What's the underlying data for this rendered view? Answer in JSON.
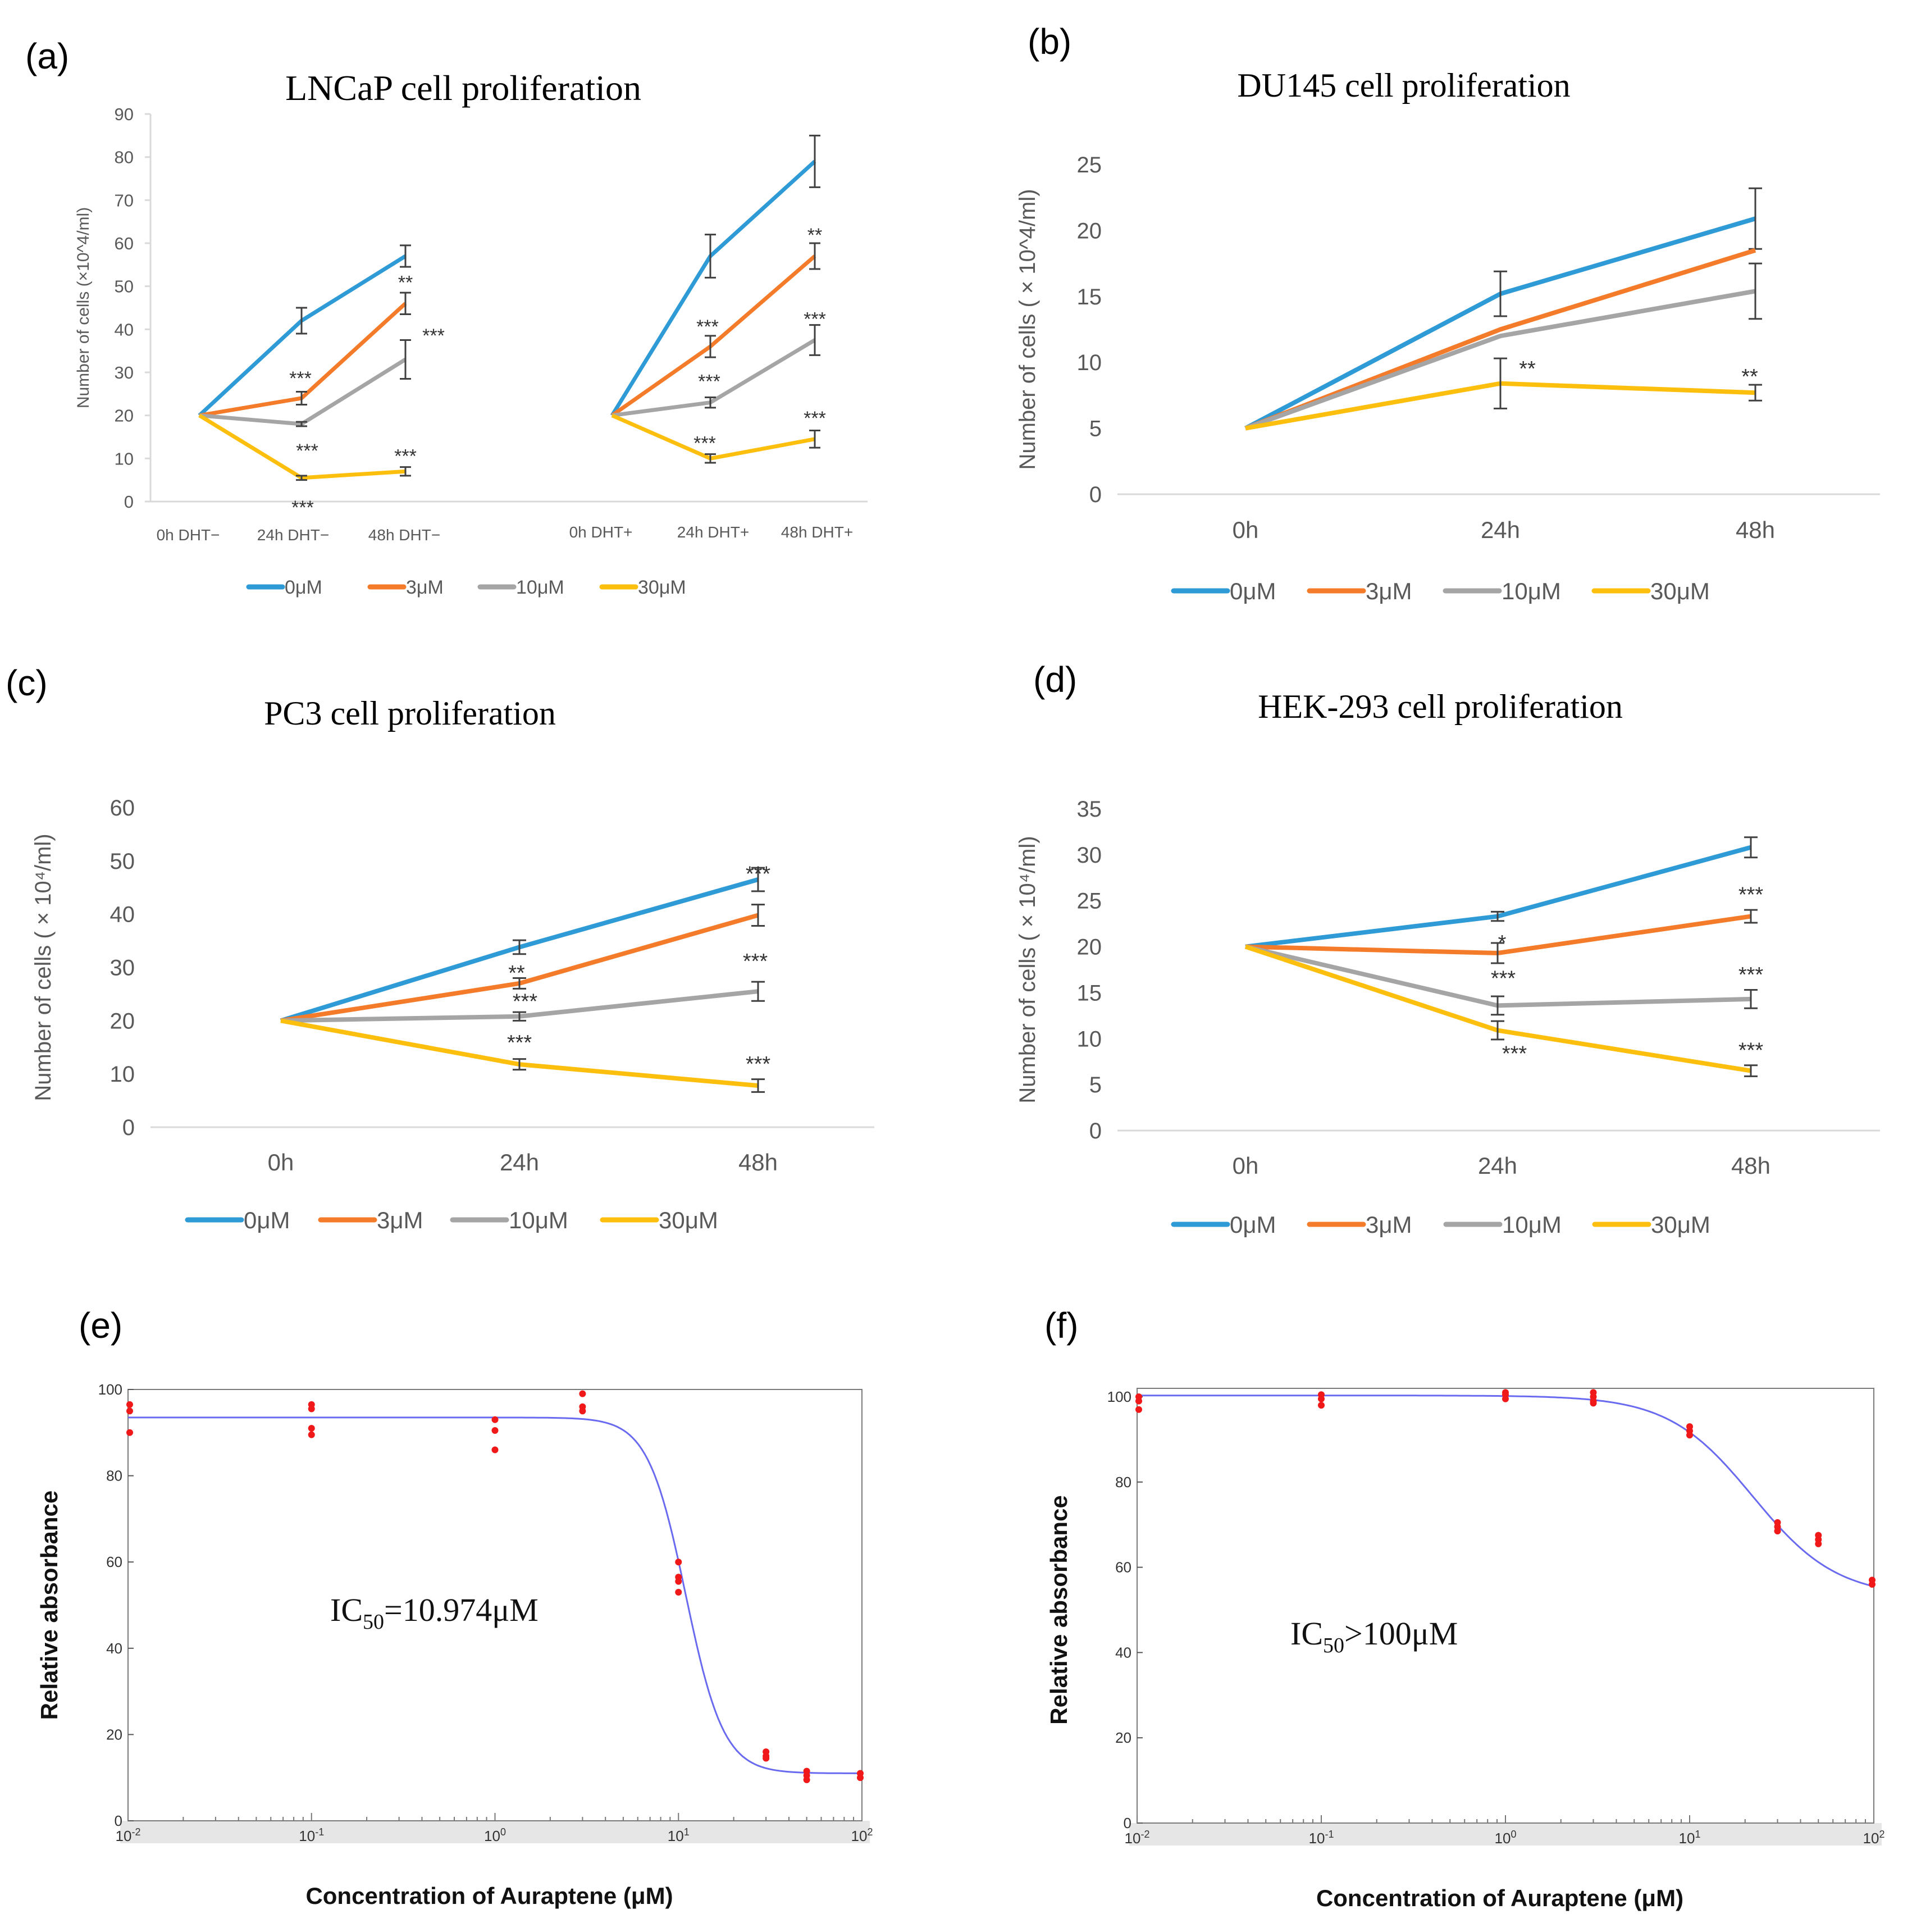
{
  "colors": {
    "c0": "#2E9AD6",
    "c3": "#F47B2A",
    "c10": "#A5A5A5",
    "c30": "#FDBF0E",
    "axis": "#D9D9D9",
    "tick": "#595959",
    "error": "#404040",
    "curve": "#6A6AF0",
    "dots": "#F01818"
  },
  "chart_data": [
    {
      "id": "a",
      "panel_label": "(a)",
      "type": "line",
      "title": "LNCaP cell proliferation",
      "ylabel": "Number of cells (×10^4/ml)",
      "ylim": [
        0,
        90
      ],
      "yticks": [
        "0",
        "10",
        "20",
        "30",
        "40",
        "50",
        "60",
        "70",
        "80",
        "90"
      ],
      "groups": [
        {
          "name": "DHT−",
          "categories": [
            "0h DHT−",
            "24h DHT−",
            "48h DHT−"
          ]
        },
        {
          "name": "DHT+",
          "categories": [
            "0h DHT+",
            "24h DHT+",
            "48h DHT+"
          ]
        }
      ],
      "series": [
        {
          "name": "0μM",
          "color_key": "c0",
          "values_minus": [
            20,
            42,
            57
          ],
          "errors_minus": [
            0,
            3,
            2.5
          ],
          "values_plus": [
            20,
            57,
            79
          ],
          "errors_plus": [
            0,
            5,
            6
          ],
          "sig_minus": [
            "",
            "",
            ""
          ],
          "sig_plus": [
            "",
            "",
            ""
          ]
        },
        {
          "name": "3μM",
          "color_key": "c3",
          "values_minus": [
            20,
            24,
            46
          ],
          "errors_minus": [
            0,
            1.5,
            2.5
          ],
          "values_plus": [
            20,
            36,
            57
          ],
          "errors_plus": [
            0,
            2.5,
            3
          ],
          "sig_minus": [
            "",
            "***",
            "**"
          ],
          "sig_plus": [
            "",
            "***",
            "**"
          ]
        },
        {
          "name": "10μM",
          "color_key": "c10",
          "values_minus": [
            20,
            18,
            33
          ],
          "errors_minus": [
            0,
            0.5,
            4.5
          ],
          "values_plus": [
            20,
            23,
            37.5
          ],
          "errors_plus": [
            0,
            1.2,
            3.5
          ],
          "sig_minus": [
            "",
            "***",
            "***"
          ],
          "sig_plus": [
            "",
            "***",
            "***"
          ]
        },
        {
          "name": "30μM",
          "color_key": "c30",
          "values_minus": [
            20,
            5.5,
            7
          ],
          "errors_minus": [
            0,
            0.5,
            1
          ],
          "values_plus": [
            20,
            10,
            14.5
          ],
          "errors_plus": [
            0,
            1,
            2
          ],
          "sig_minus": [
            "",
            "***",
            "***"
          ],
          "sig_plus": [
            "",
            "***",
            "***"
          ]
        }
      ]
    },
    {
      "id": "b",
      "panel_label": "(b)",
      "type": "line",
      "title": "DU145 cell proliferation",
      "ylabel": "Number of cells ( × 10^4/ml)",
      "ylim": [
        0,
        25
      ],
      "yticks": [
        "0",
        "5",
        "10",
        "15",
        "20",
        "25"
      ],
      "categories": [
        "0h",
        "24h",
        "48h"
      ],
      "series": [
        {
          "name": "0μM",
          "color_key": "c0",
          "values": [
            5,
            15.2,
            20.9
          ],
          "errors": [
            0,
            1.7,
            2.3
          ],
          "sig": [
            "",
            "",
            ""
          ]
        },
        {
          "name": "3μM",
          "color_key": "c3",
          "values": [
            5,
            12.5,
            18.5
          ],
          "errors": [
            0,
            0,
            0
          ],
          "sig": [
            "",
            "",
            ""
          ]
        },
        {
          "name": "10μM",
          "color_key": "c10",
          "values": [
            5,
            12,
            15.4
          ],
          "errors": [
            0,
            0,
            2.1
          ],
          "sig": [
            "",
            "",
            ""
          ]
        },
        {
          "name": "30μM",
          "color_key": "c30",
          "values": [
            5,
            8.4,
            7.7
          ],
          "errors": [
            0,
            1.9,
            0.6
          ],
          "sig": [
            "",
            "**",
            "**"
          ]
        }
      ]
    },
    {
      "id": "c",
      "panel_label": "(c)",
      "type": "line",
      "title": "PC3 cell proliferation",
      "ylabel": "Number of cells ( × 10⁴/ml)",
      "ylim": [
        0,
        60
      ],
      "yticks": [
        "0",
        "10",
        "20",
        "30",
        "40",
        "50",
        "60"
      ],
      "categories": [
        "0h",
        "24h",
        "48h"
      ],
      "series": [
        {
          "name": "0μM",
          "color_key": "c0",
          "values": [
            20,
            33.8,
            46.5
          ],
          "errors": [
            0,
            1.3,
            2.2
          ],
          "sig": [
            "",
            "",
            ""
          ]
        },
        {
          "name": "3μM",
          "color_key": "c3",
          "values": [
            20,
            27,
            39.8
          ],
          "errors": [
            0,
            1,
            2
          ],
          "sig": [
            "",
            "**",
            "***"
          ]
        },
        {
          "name": "10μM",
          "color_key": "c10",
          "values": [
            20,
            20.8,
            25.5
          ],
          "errors": [
            0,
            0.8,
            1.8
          ],
          "sig": [
            "",
            "***",
            "***"
          ]
        },
        {
          "name": "30μM",
          "color_key": "c30",
          "values": [
            20,
            11.8,
            7.8
          ],
          "errors": [
            0,
            1,
            1.2
          ],
          "sig": [
            "",
            "***",
            "***"
          ]
        }
      ]
    },
    {
      "id": "d",
      "panel_label": "(d)",
      "type": "line",
      "title": "HEK-293 cell proliferation",
      "ylabel": "Number of cells ( × 10⁴/ml)",
      "ylim": [
        0,
        35
      ],
      "yticks": [
        "0",
        "5",
        "10",
        "15",
        "20",
        "25",
        "30",
        "35"
      ],
      "categories": [
        "0h",
        "24h",
        "48h"
      ],
      "series": [
        {
          "name": "0μM",
          "color_key": "c0",
          "values": [
            20,
            23.3,
            30.8
          ],
          "errors": [
            0,
            0.5,
            1.1
          ],
          "sig": [
            "",
            "",
            ""
          ]
        },
        {
          "name": "3μM",
          "color_key": "c3",
          "values": [
            20,
            19.3,
            23.3
          ],
          "errors": [
            0,
            1.1,
            0.7
          ],
          "sig": [
            "",
            "*",
            "***"
          ]
        },
        {
          "name": "10μM",
          "color_key": "c10",
          "values": [
            20,
            13.6,
            14.3
          ],
          "errors": [
            0,
            1,
            1
          ],
          "sig": [
            "",
            "***",
            "***"
          ]
        },
        {
          "name": "30μM",
          "color_key": "c30",
          "values": [
            20,
            10.9,
            6.5
          ],
          "errors": [
            0,
            1,
            0.6
          ],
          "sig": [
            "",
            "***",
            "***"
          ]
        }
      ]
    },
    {
      "id": "e",
      "panel_label": "(e)",
      "type": "scatter",
      "xscale": "log",
      "xlabel": "Concentration of Auraptene (μM)",
      "ylabel": "Relative absorbance",
      "xlim": [
        0.01,
        100
      ],
      "ylim": [
        0,
        100
      ],
      "yticks": [
        "0",
        "20",
        "40",
        "60",
        "80",
        "100"
      ],
      "xticks": [
        {
          "base": "10",
          "exp": "-2"
        },
        {
          "base": "10",
          "exp": "-1"
        },
        {
          "base": "10",
          "exp": "0"
        },
        {
          "base": "10",
          "exp": "1"
        },
        {
          "base": "10",
          "exp": "2"
        }
      ],
      "annotation": {
        "prefix": "IC",
        "sub": "50",
        "suffix": "=10.974μM"
      },
      "fit": {
        "top": 93.5,
        "bottom": 11,
        "ic50": 10.974,
        "hill": 4.2
      },
      "points": [
        {
          "x": 0.01,
          "y": 96.5
        },
        {
          "x": 0.01,
          "y": 95
        },
        {
          "x": 0.01,
          "y": 90
        },
        {
          "x": 0.1,
          "y": 96.5
        },
        {
          "x": 0.1,
          "y": 95.5
        },
        {
          "x": 0.1,
          "y": 91
        },
        {
          "x": 0.1,
          "y": 89.5
        },
        {
          "x": 1,
          "y": 93
        },
        {
          "x": 1,
          "y": 90.5
        },
        {
          "x": 1,
          "y": 86
        },
        {
          "x": 3,
          "y": 99
        },
        {
          "x": 3,
          "y": 96
        },
        {
          "x": 3,
          "y": 95
        },
        {
          "x": 10,
          "y": 60
        },
        {
          "x": 10,
          "y": 56.5
        },
        {
          "x": 10,
          "y": 55.5
        },
        {
          "x": 10,
          "y": 53
        },
        {
          "x": 30,
          "y": 16
        },
        {
          "x": 30,
          "y": 15
        },
        {
          "x": 30,
          "y": 14.5
        },
        {
          "x": 50,
          "y": 11.5
        },
        {
          "x": 50,
          "y": 10.5
        },
        {
          "x": 50,
          "y": 9.5
        },
        {
          "x": 100,
          "y": 11
        },
        {
          "x": 100,
          "y": 10
        }
      ]
    },
    {
      "id": "f",
      "panel_label": "(f)",
      "type": "scatter",
      "xscale": "log",
      "xlabel": "Concentration of Auraptene (μM)",
      "ylabel": "Relative absorbance",
      "xlim": [
        0.01,
        100
      ],
      "ylim": [
        0,
        100
      ],
      "yticks": [
        "0",
        "20",
        "40",
        "60",
        "80",
        "100"
      ],
      "xticks": [
        {
          "base": "10",
          "exp": "-2"
        },
        {
          "base": "10",
          "exp": "-1"
        },
        {
          "base": "10",
          "exp": "0"
        },
        {
          "base": "10",
          "exp": "1"
        },
        {
          "base": "10",
          "exp": "2"
        }
      ],
      "annotation": {
        "prefix": "IC",
        "sub": "50",
        "suffix": ">100μM"
      },
      "fit": {
        "top": 100.3,
        "bottom": 53,
        "ic50": 22,
        "hill": 1.9
      },
      "points": [
        {
          "x": 0.01,
          "y": 100
        },
        {
          "x": 0.01,
          "y": 99
        },
        {
          "x": 0.01,
          "y": 97
        },
        {
          "x": 0.1,
          "y": 100.5
        },
        {
          "x": 0.1,
          "y": 99.5
        },
        {
          "x": 0.1,
          "y": 98
        },
        {
          "x": 1,
          "y": 101
        },
        {
          "x": 1,
          "y": 100.5
        },
        {
          "x": 1,
          "y": 99.5
        },
        {
          "x": 3,
          "y": 101
        },
        {
          "x": 3,
          "y": 100
        },
        {
          "x": 3,
          "y": 99
        },
        {
          "x": 3,
          "y": 98.5
        },
        {
          "x": 10,
          "y": 93
        },
        {
          "x": 10,
          "y": 92
        },
        {
          "x": 10,
          "y": 91
        },
        {
          "x": 30,
          "y": 70.5
        },
        {
          "x": 30,
          "y": 69.5
        },
        {
          "x": 30,
          "y": 68.5
        },
        {
          "x": 50,
          "y": 67.5
        },
        {
          "x": 50,
          "y": 66.5
        },
        {
          "x": 50,
          "y": 65.5
        },
        {
          "x": 100,
          "y": 57
        },
        {
          "x": 100,
          "y": 56
        }
      ]
    }
  ]
}
